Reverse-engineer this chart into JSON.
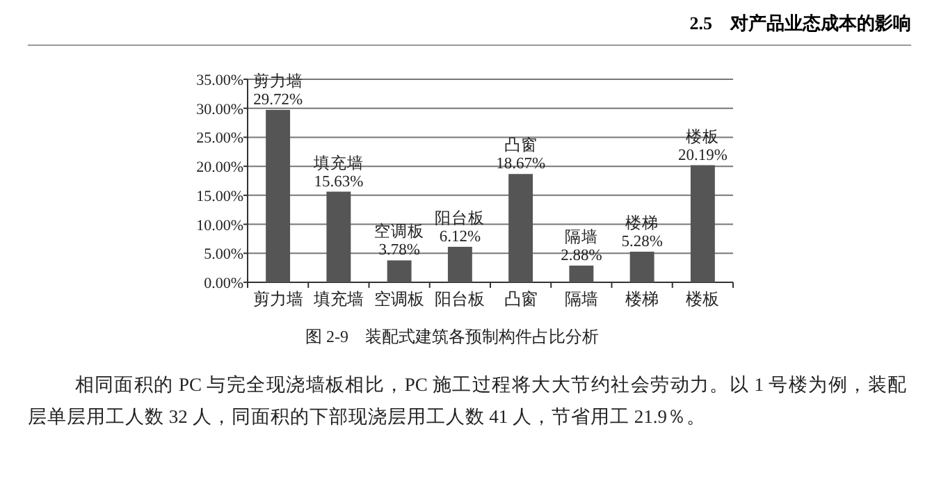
{
  "chart_data": {
    "type": "bar",
    "title": "图 2-9　装配式建筑各预制构件占比分析",
    "categories": [
      "剪力墙",
      "填充墙",
      "空调板",
      "阳台板",
      "凸窗",
      "隔墙",
      "楼梯",
      "楼板"
    ],
    "values": [
      29.72,
      15.63,
      3.78,
      6.12,
      18.67,
      2.88,
      5.28,
      20.19
    ],
    "value_labels": [
      "29.72%",
      "15.63%",
      "3.78%",
      "6.12%",
      "18.67%",
      "2.88%",
      "5.28%",
      "20.19%"
    ],
    "color": "#555555",
    "ylim": [
      0,
      35
    ],
    "yticks": [
      {
        "value": 0,
        "label": "0.00%"
      },
      {
        "value": 5,
        "label": "5.00%"
      },
      {
        "value": 10,
        "label": "10.00%"
      },
      {
        "value": 15,
        "label": "15.00%"
      },
      {
        "value": 20,
        "label": "20.00%"
      },
      {
        "value": 25,
        "label": "25.00%"
      },
      {
        "value": 30,
        "label": "30.00%"
      },
      {
        "value": 35,
        "label": "35.00%"
      }
    ],
    "grid": "y",
    "annotations": [
      "2.5　对产品业态成本的影响",
      "相同面积的 PC 与完全现浇墙板相比，PC 施工过程将大大节约社会劳动力。以 1 号楼为例，装配层单层用工人数 32 人，同面积的下部现浇层用工人数 41 人，节省用工 21.9％。"
    ]
  }
}
